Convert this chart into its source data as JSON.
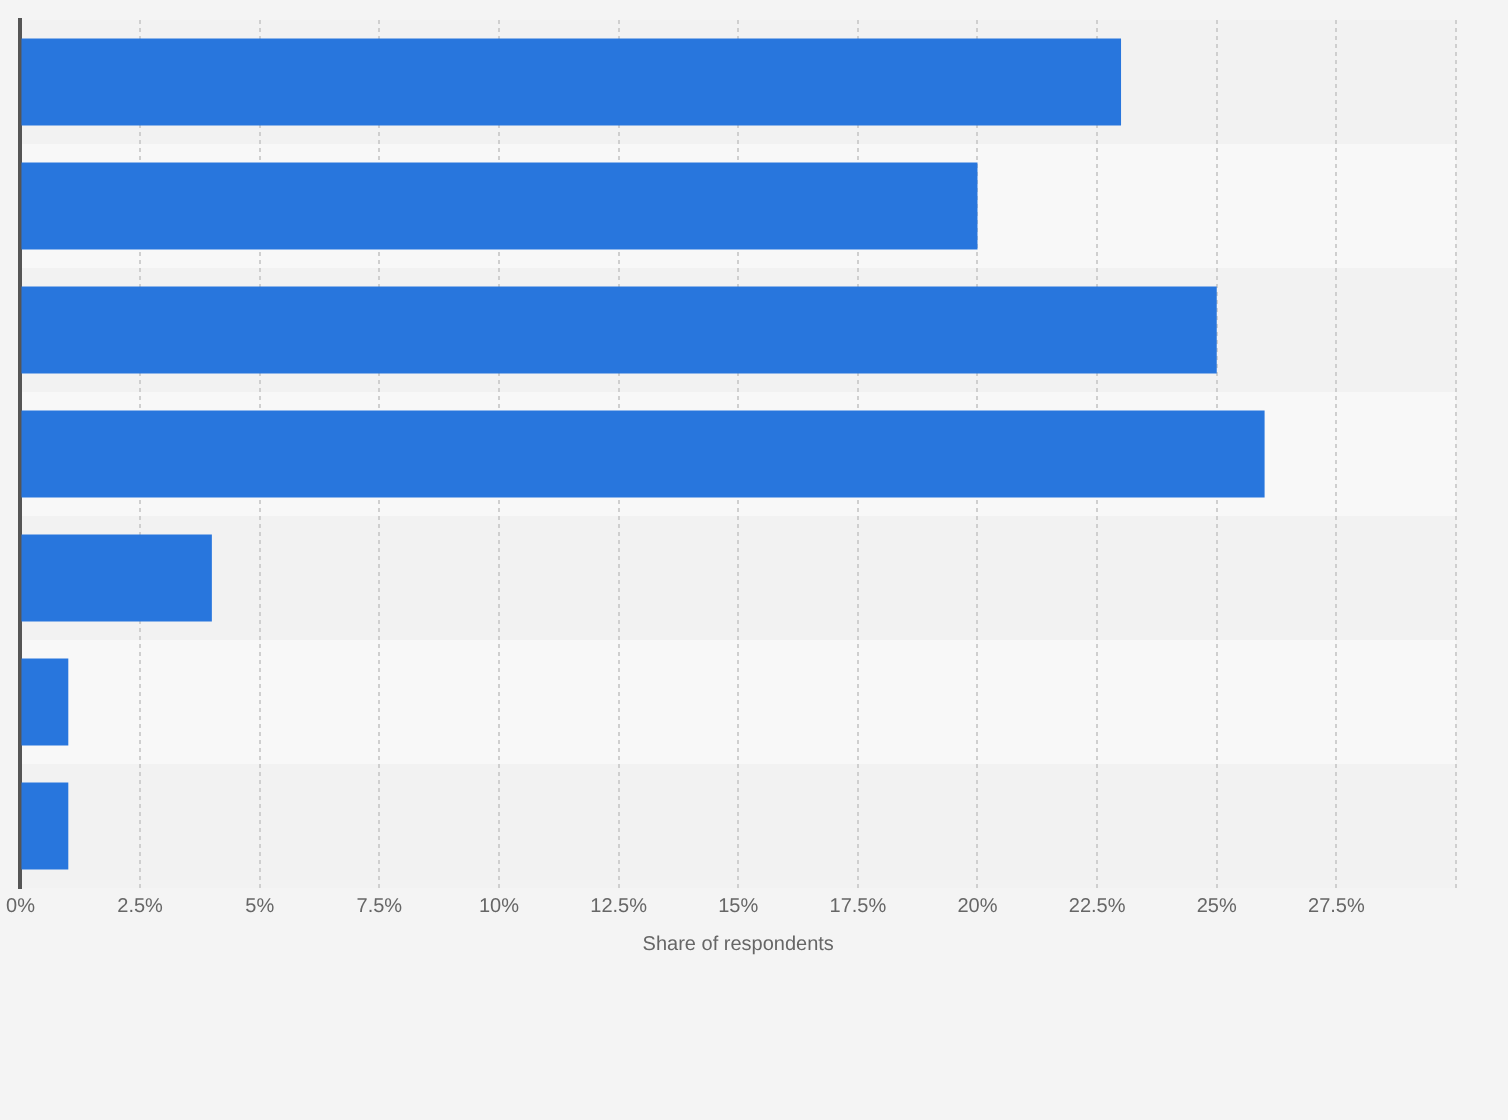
{
  "chart_data": {
    "type": "bar",
    "orientation": "horizontal",
    "xlabel": "Share of respondents",
    "categories": [
      null,
      null,
      null,
      null,
      null,
      null,
      null
    ],
    "values": [
      23,
      20,
      25,
      26,
      4,
      1,
      1
    ],
    "color": "#2876dd",
    "xlim": [
      0,
      30
    ],
    "xticks": [
      {
        "value": 0,
        "label": "0%"
      },
      {
        "value": 2.5,
        "label": "2.5%"
      },
      {
        "value": 5,
        "label": "5%"
      },
      {
        "value": 7.5,
        "label": "7.5%"
      },
      {
        "value": 10,
        "label": "10%"
      },
      {
        "value": 12.5,
        "label": "12.5%"
      },
      {
        "value": 15,
        "label": "15%"
      },
      {
        "value": 17.5,
        "label": "17.5%"
      },
      {
        "value": 20,
        "label": "20%"
      },
      {
        "value": 22.5,
        "label": "22.5%"
      },
      {
        "value": 25,
        "label": "25%"
      },
      {
        "value": 27.5,
        "label": "27.5%"
      },
      {
        "value": 30,
        "label": null
      }
    ],
    "grid": "x",
    "legend": false
  }
}
